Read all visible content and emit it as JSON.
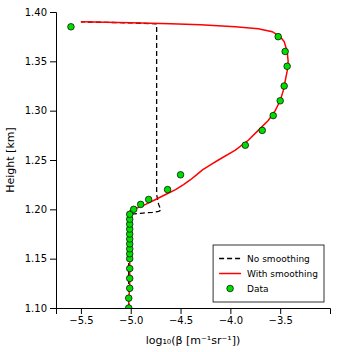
{
  "chart_data": {
    "type": "line",
    "xlabel": "log₁₀(β [m⁻¹sr⁻¹])",
    "ylabel": "Height [km]",
    "xlim": [
      -5.75,
      -3.0
    ],
    "ylim": [
      1.1,
      1.4
    ],
    "xticks": [
      {
        "value": -5.5,
        "label": "−5.5"
      },
      {
        "value": -5.0,
        "label": "−5.0"
      },
      {
        "value": -4.5,
        "label": "−4.5"
      },
      {
        "value": -4.0,
        "label": "−4.0"
      },
      {
        "value": -3.5,
        "label": "−3.5"
      }
    ],
    "yticks": [
      {
        "value": 1.1,
        "label": "1.10"
      },
      {
        "value": 1.15,
        "label": "1.15"
      },
      {
        "value": 1.2,
        "label": "1.20"
      },
      {
        "value": 1.25,
        "label": "1.25"
      },
      {
        "value": 1.3,
        "label": "1.30"
      },
      {
        "value": 1.35,
        "label": "1.35"
      },
      {
        "value": 1.4,
        "label": "1.40"
      }
    ],
    "grid": false,
    "legend": "lower right",
    "series": [
      {
        "name": "No smoothing",
        "type": "line",
        "line_style": "dashed",
        "color": "#000000",
        "x": [
          -5.02,
          -5.02,
          -5.02,
          -5.01,
          -4.9,
          -4.78,
          -4.72,
          -4.7,
          -4.7,
          -4.72,
          -4.73,
          -4.74,
          -4.74,
          -4.74,
          -4.74,
          -4.74,
          -4.74,
          -4.74,
          -4.74,
          -4.74,
          -4.74,
          -4.74,
          -4.74,
          -4.74,
          -4.74,
          -4.74,
          -4.74,
          -4.74,
          -4.74,
          -4.74,
          -4.74,
          -4.74,
          -4.74,
          -4.74,
          -4.74,
          -4.74,
          -4.74,
          -5.0,
          -5.5
        ],
        "values": [
          1.1,
          1.185,
          1.19,
          1.195,
          1.196,
          1.197,
          1.198,
          1.199,
          1.2,
          1.205,
          1.21,
          1.215,
          1.22,
          1.225,
          1.23,
          1.235,
          1.24,
          1.245,
          1.25,
          1.26,
          1.27,
          1.28,
          1.29,
          1.3,
          1.31,
          1.32,
          1.33,
          1.34,
          1.35,
          1.36,
          1.37,
          1.375,
          1.38,
          1.383,
          1.385,
          1.387,
          1.388,
          1.389,
          1.39
        ]
      },
      {
        "name": "With smoothing",
        "type": "line",
        "line_style": "solid",
        "color": "#ff0000",
        "x": [
          -5.02,
          -5.02,
          -5.01,
          -5.01,
          -5.01,
          -5.01,
          -5.01,
          -5.01,
          -5.01,
          -5.01,
          -5.01,
          -5.01,
          -5.01,
          -5.01,
          -5.0,
          -4.97,
          -4.92,
          -4.85,
          -4.75,
          -4.65,
          -4.55,
          -4.47,
          -4.4,
          -4.34,
          -4.28,
          -4.2,
          -4.12,
          -3.95,
          -3.82,
          -3.72,
          -3.62,
          -3.55,
          -3.5,
          -3.47,
          -3.45,
          -3.43,
          -3.42,
          -3.43,
          -3.46,
          -3.5,
          -3.58,
          -3.72,
          -3.95,
          -4.3,
          -4.6,
          -5.0,
          -5.5
        ],
        "values": [
          1.1,
          1.11,
          1.12,
          1.13,
          1.14,
          1.15,
          1.16,
          1.17,
          1.18,
          1.185,
          1.19,
          1.193,
          1.196,
          1.198,
          1.199,
          1.2,
          1.202,
          1.205,
          1.21,
          1.215,
          1.22,
          1.225,
          1.23,
          1.235,
          1.24,
          1.245,
          1.25,
          1.26,
          1.27,
          1.28,
          1.29,
          1.3,
          1.31,
          1.32,
          1.33,
          1.34,
          1.35,
          1.36,
          1.37,
          1.375,
          1.38,
          1.383,
          1.385,
          1.387,
          1.388,
          1.389,
          1.39
        ]
      },
      {
        "name": "Data",
        "type": "scatter",
        "marker": "circle",
        "color": "#00dd00",
        "x": [
          -5.02,
          -5.02,
          -5.01,
          -5.01,
          -5.01,
          -5.01,
          -5.01,
          -5.01,
          -5.01,
          -5.01,
          -5.01,
          -5.01,
          -5.01,
          -5.01,
          -5.01,
          -4.97,
          -4.9,
          -4.82,
          -4.63,
          -4.5,
          -3.85,
          -3.68,
          -3.57,
          -3.5,
          -3.46,
          -3.43,
          -3.45,
          -3.52,
          -5.6
        ],
        "values": [
          1.1,
          1.11,
          1.12,
          1.13,
          1.14,
          1.15,
          1.155,
          1.16,
          1.165,
          1.17,
          1.175,
          1.18,
          1.185,
          1.19,
          1.195,
          1.2,
          1.205,
          1.21,
          1.22,
          1.235,
          1.265,
          1.28,
          1.295,
          1.31,
          1.325,
          1.345,
          1.36,
          1.375,
          1.385
        ]
      }
    ]
  }
}
